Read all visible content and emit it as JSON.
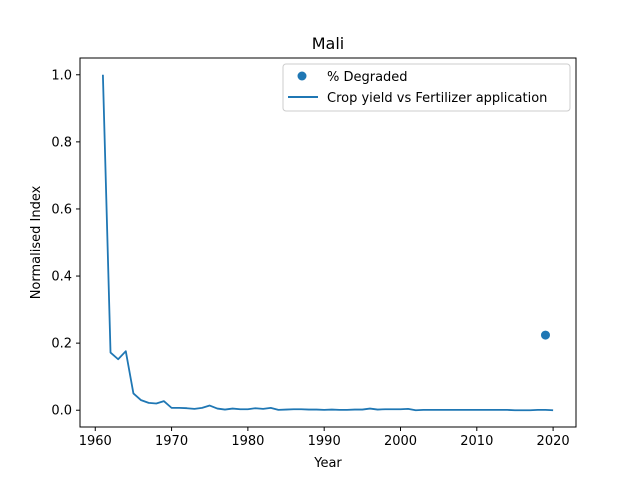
{
  "chart_data": {
    "type": "line",
    "title": "Mali",
    "xlabel": "Year",
    "ylabel": "Normalised Index",
    "xlim": [
      1958,
      2023
    ],
    "ylim": [
      -0.05,
      1.05
    ],
    "xticks": [
      1960,
      1970,
      1980,
      1990,
      2000,
      2010,
      2020
    ],
    "yticks": [
      0.0,
      0.2,
      0.4,
      0.6,
      0.8,
      1.0
    ],
    "xtick_labels": [
      "1960",
      "1970",
      "1980",
      "1990",
      "2000",
      "2010",
      "2020"
    ],
    "ytick_labels": [
      "0.0",
      "0.2",
      "0.4",
      "0.6",
      "0.8",
      "1.0"
    ],
    "grid": false,
    "legend_position": "top-right",
    "line_color": "#1f77b4",
    "series": [
      {
        "name": "Crop yield vs Fertilizer application",
        "kind": "line",
        "x": [
          1961,
          1962,
          1963,
          1964,
          1965,
          1966,
          1967,
          1968,
          1969,
          1970,
          1971,
          1972,
          1973,
          1974,
          1975,
          1976,
          1977,
          1978,
          1979,
          1980,
          1981,
          1982,
          1983,
          1984,
          1985,
          1986,
          1987,
          1988,
          1989,
          1990,
          1991,
          1992,
          1993,
          1994,
          1995,
          1996,
          1997,
          1998,
          1999,
          2000,
          2001,
          2002,
          2003,
          2004,
          2005,
          2006,
          2007,
          2008,
          2009,
          2010,
          2011,
          2012,
          2013,
          2014,
          2015,
          2016,
          2017,
          2018,
          2019,
          2020
        ],
        "y": [
          1.0,
          0.172,
          0.152,
          0.176,
          0.05,
          0.03,
          0.022,
          0.02,
          0.027,
          0.007,
          0.007,
          0.006,
          0.004,
          0.007,
          0.014,
          0.005,
          0.002,
          0.005,
          0.003,
          0.003,
          0.006,
          0.004,
          0.007,
          0.001,
          0.002,
          0.003,
          0.003,
          0.002,
          0.002,
          0.001,
          0.002,
          0.001,
          0.001,
          0.002,
          0.002,
          0.005,
          0.002,
          0.003,
          0.003,
          0.003,
          0.004,
          0.0,
          0.001,
          0.001,
          0.001,
          0.001,
          0.001,
          0.001,
          0.001,
          0.001,
          0.001,
          0.001,
          0.001,
          0.001,
          0.0,
          0.0,
          0.0,
          0.001,
          0.001,
          0.0
        ]
      },
      {
        "name": "% Degraded",
        "kind": "scatter",
        "x": [
          2019
        ],
        "y": [
          0.224
        ]
      }
    ]
  }
}
